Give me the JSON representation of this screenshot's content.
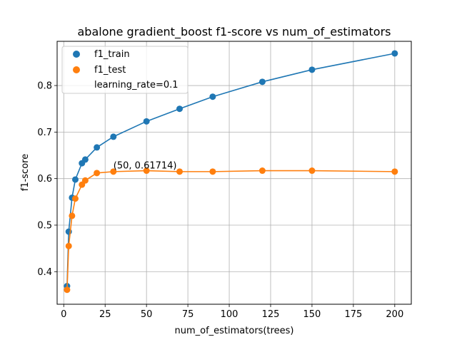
{
  "chart_data": {
    "type": "line",
    "title": "abalone gradient_boost f1-score vs num_of_estimators",
    "xlabel": "num_of_estimators(trees)",
    "ylabel": "f1-score",
    "xlim": [
      -4,
      210
    ],
    "ylim": [
      0.33,
      0.895
    ],
    "xticks": [
      0,
      25,
      50,
      75,
      100,
      125,
      150,
      175,
      200
    ],
    "yticks": [
      0.4,
      0.5,
      0.6,
      0.7,
      0.8
    ],
    "grid": true,
    "legend_position": "top-left",
    "x": [
      2,
      3,
      5,
      7,
      11,
      13,
      20,
      30,
      50,
      70,
      90,
      120,
      150,
      200
    ],
    "series": [
      {
        "name": "f1_train",
        "color": "#1f77b4",
        "values": [
          0.369,
          0.486,
          0.559,
          0.598,
          0.633,
          0.641,
          0.667,
          0.69,
          0.723,
          0.75,
          0.776,
          0.808,
          0.834,
          0.869
        ]
      },
      {
        "name": "f1_test",
        "color": "#ff7f0e",
        "values": [
          0.361,
          0.455,
          0.52,
          0.557,
          0.587,
          0.596,
          0.612,
          0.615,
          0.617,
          0.615,
          0.615,
          0.617,
          0.617,
          0.615
        ]
      }
    ],
    "legend_extra": "learning_rate=0.1",
    "annotation": {
      "text": "(50, 0.61714)",
      "x": 30,
      "y": 0.617
    }
  }
}
